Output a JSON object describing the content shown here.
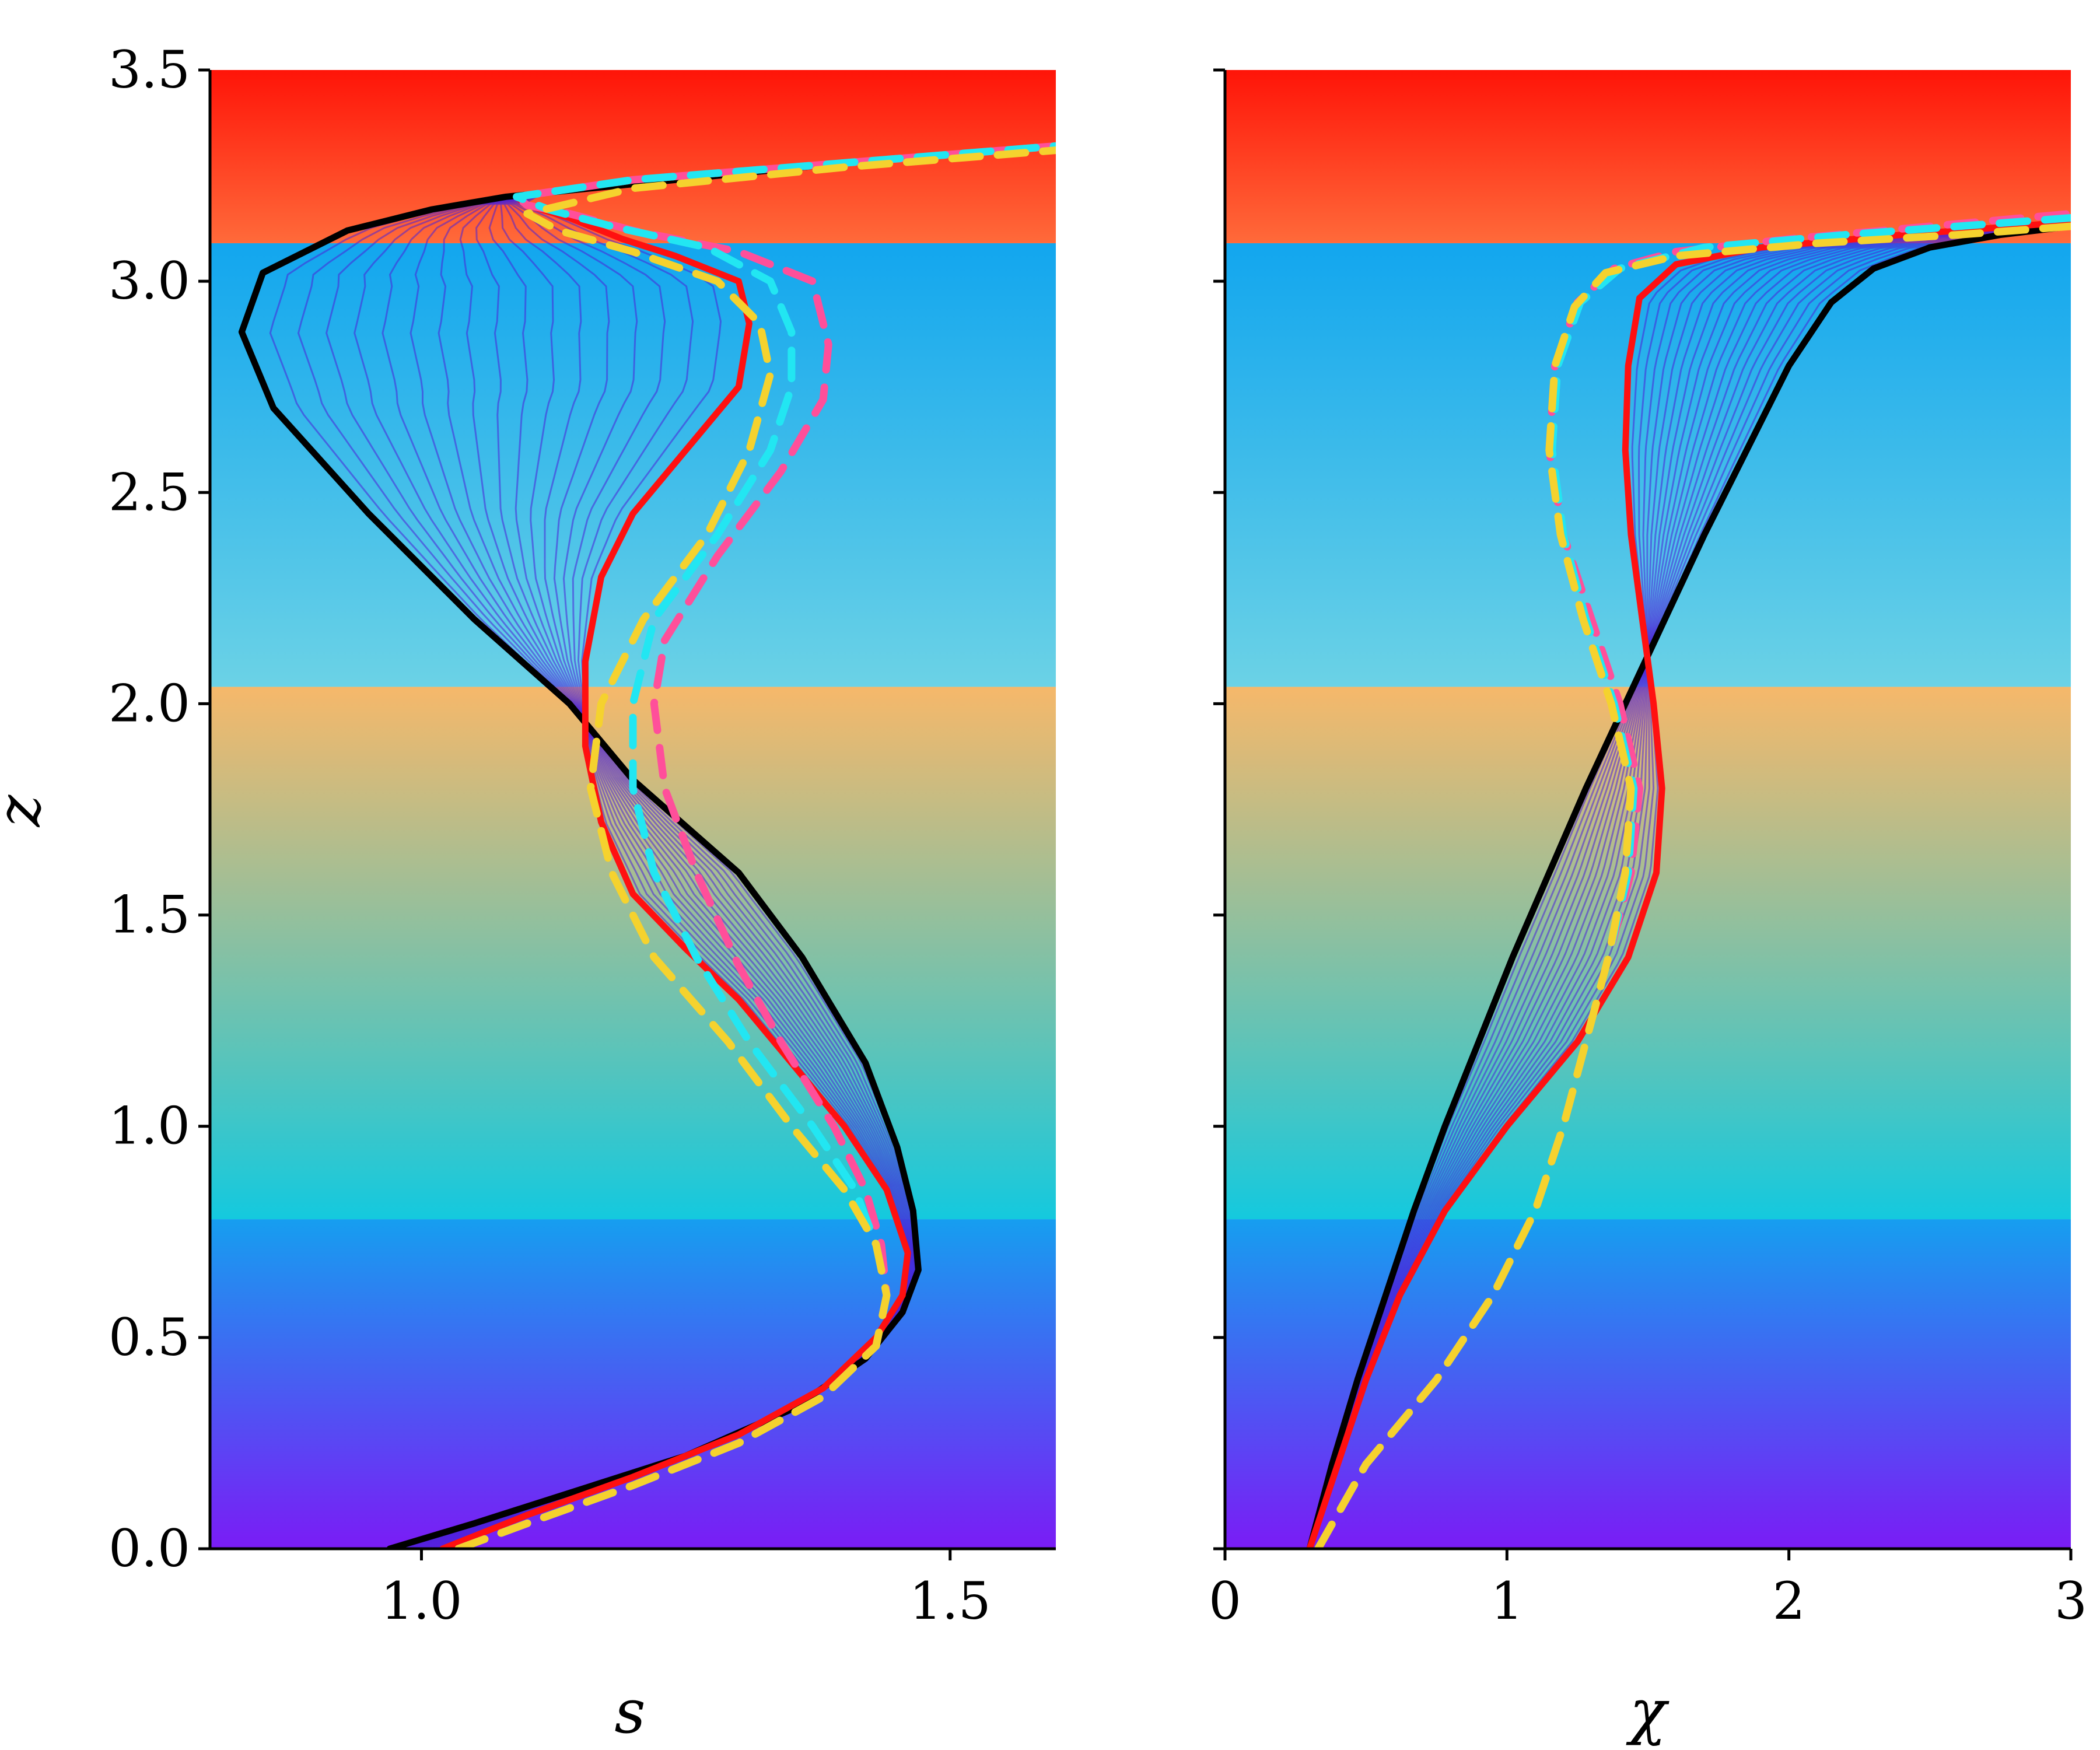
{
  "chart_data": [
    {
      "type": "line",
      "xlabel": "s",
      "ylabel": "z",
      "xlim": [
        0.8,
        1.6
      ],
      "ylim": [
        0.0,
        3.5
      ],
      "xticks": [
        "1.0",
        "1.5"
      ],
      "yticks": [
        "0.0",
        "0.5",
        "1.0",
        "1.5",
        "2.0",
        "2.5",
        "3.0",
        "3.5"
      ],
      "background_bands": [
        {
          "z_from": 0.0,
          "z_to": 0.78,
          "colors": [
            "#7a1cf5",
            "#169ef0"
          ]
        },
        {
          "z_from": 0.78,
          "z_to": 2.04,
          "colors": [
            "#14c9de",
            "#f6b86a"
          ]
        },
        {
          "z_from": 2.04,
          "z_to": 3.09,
          "colors": [
            "#6bd2e6",
            "#12a6ee"
          ]
        },
        {
          "z_from": 3.09,
          "z_to": 3.5,
          "colors": [
            "#ff6a3a",
            "#ff1408"
          ]
        }
      ],
      "series": [
        {
          "color": "#000000",
          "style": "solid",
          "x": [
            0.97,
            1.05,
            1.15,
            1.25,
            1.35,
            1.42,
            1.455,
            1.47,
            1.465,
            1.45,
            1.42,
            1.36,
            1.3,
            1.2,
            1.14,
            1.05,
            0.95,
            0.86,
            0.83,
            0.85,
            0.93,
            1.01,
            1.08,
            1.2,
            1.4,
            1.6
          ],
          "z": [
            0.0,
            0.06,
            0.14,
            0.22,
            0.33,
            0.45,
            0.56,
            0.66,
            0.8,
            0.95,
            1.15,
            1.4,
            1.6,
            1.82,
            2.0,
            2.2,
            2.45,
            2.7,
            2.88,
            3.02,
            3.12,
            3.17,
            3.2,
            3.23,
            3.28,
            3.32
          ]
        },
        {
          "color": "#ff1010",
          "style": "solid",
          "x": [
            1.02,
            1.1,
            1.2,
            1.3,
            1.38,
            1.43,
            1.455,
            1.46,
            1.44,
            1.4,
            1.35,
            1.3,
            1.25,
            1.2,
            1.17,
            1.155,
            1.155,
            1.17,
            1.2,
            1.25,
            1.3,
            1.31,
            1.3,
            1.24,
            1.19,
            1.14,
            1.1,
            1.09,
            1.2,
            1.4,
            1.6
          ],
          "z": [
            0.0,
            0.08,
            0.17,
            0.27,
            0.38,
            0.5,
            0.6,
            0.7,
            0.85,
            1.0,
            1.15,
            1.3,
            1.42,
            1.55,
            1.72,
            1.9,
            2.1,
            2.3,
            2.45,
            2.6,
            2.75,
            2.9,
            3.0,
            3.06,
            3.1,
            3.15,
            3.18,
            3.2,
            3.24,
            3.28,
            3.32
          ]
        },
        {
          "color": "#ff4f9a",
          "style": "dashed",
          "x": [
            1.035,
            1.1,
            1.2,
            1.3,
            1.38,
            1.43,
            1.44,
            1.435,
            1.42,
            1.39,
            1.34,
            1.3,
            1.26,
            1.23,
            1.22,
            1.23,
            1.28,
            1.34,
            1.38,
            1.385,
            1.37,
            1.3,
            1.2,
            1.14,
            1.1,
            1.09,
            1.2,
            1.4,
            1.6
          ],
          "z": [
            0.0,
            0.06,
            0.15,
            0.25,
            0.36,
            0.48,
            0.6,
            0.72,
            0.85,
            1.0,
            1.2,
            1.38,
            1.6,
            1.8,
            2.0,
            2.15,
            2.35,
            2.55,
            2.72,
            2.85,
            3.0,
            3.07,
            3.12,
            3.16,
            3.18,
            3.2,
            3.24,
            3.28,
            3.32
          ]
        },
        {
          "color": "#22e6f2",
          "style": "dashed",
          "x": [
            1.035,
            1.1,
            1.2,
            1.3,
            1.38,
            1.43,
            1.44,
            1.43,
            1.41,
            1.37,
            1.31,
            1.26,
            1.22,
            1.2,
            1.2,
            1.22,
            1.28,
            1.33,
            1.35,
            1.35,
            1.33,
            1.27,
            1.18,
            1.12,
            1.09,
            1.2,
            1.4,
            1.6
          ],
          "z": [
            0.0,
            0.06,
            0.15,
            0.25,
            0.36,
            0.48,
            0.6,
            0.72,
            0.85,
            1.0,
            1.2,
            1.4,
            1.6,
            1.8,
            2.0,
            2.2,
            2.4,
            2.6,
            2.75,
            2.88,
            3.0,
            3.08,
            3.13,
            3.17,
            3.2,
            3.24,
            3.28,
            3.32
          ]
        },
        {
          "color": "#f5d22e",
          "style": "dashed",
          "x": [
            1.035,
            1.1,
            1.2,
            1.3,
            1.38,
            1.43,
            1.44,
            1.43,
            1.4,
            1.35,
            1.29,
            1.22,
            1.18,
            1.16,
            1.17,
            1.21,
            1.27,
            1.31,
            1.33,
            1.32,
            1.28,
            1.2,
            1.13,
            1.1,
            1.2,
            1.4,
            1.6
          ],
          "z": [
            0.0,
            0.06,
            0.15,
            0.25,
            0.36,
            0.48,
            0.6,
            0.72,
            0.85,
            1.0,
            1.2,
            1.4,
            1.6,
            1.8,
            2.0,
            2.2,
            2.4,
            2.6,
            2.78,
            2.9,
            3.0,
            3.07,
            3.12,
            3.16,
            3.22,
            3.27,
            3.31
          ]
        }
      ]
    },
    {
      "type": "line",
      "xlabel": "χ",
      "ylabel": "",
      "xlim": [
        0,
        3
      ],
      "ylim": [
        0.0,
        3.5
      ],
      "xticks": [
        "0",
        "1",
        "2",
        "3"
      ],
      "yticks": [],
      "background_bands": [
        {
          "z_from": 0.0,
          "z_to": 0.78,
          "colors": [
            "#7a1cf5",
            "#169ef0"
          ]
        },
        {
          "z_from": 0.78,
          "z_to": 2.04,
          "colors": [
            "#14c9de",
            "#f6b86a"
          ]
        },
        {
          "z_from": 2.04,
          "z_to": 3.09,
          "colors": [
            "#6bd2e6",
            "#12a6ee"
          ]
        },
        {
          "z_from": 3.09,
          "z_to": 3.5,
          "colors": [
            "#ff6a3a",
            "#ff1408"
          ]
        }
      ],
      "series": [
        {
          "color": "#000000",
          "style": "solid",
          "x": [
            0.3,
            0.38,
            0.47,
            0.57,
            0.67,
            0.78,
            0.9,
            1.02,
            1.15,
            1.28,
            1.42,
            1.56,
            1.7,
            1.85,
            2.0,
            2.15,
            2.3,
            2.5,
            2.75,
            3.0
          ],
          "z": [
            0.0,
            0.2,
            0.4,
            0.6,
            0.8,
            1.0,
            1.2,
            1.4,
            1.6,
            1.8,
            2.0,
            2.2,
            2.4,
            2.6,
            2.8,
            2.95,
            3.03,
            3.08,
            3.11,
            3.13
          ]
        },
        {
          "color": "#ff1010",
          "style": "solid",
          "x": [
            0.3,
            0.4,
            0.5,
            0.62,
            0.78,
            1.0,
            1.25,
            1.43,
            1.53,
            1.55,
            1.52,
            1.48,
            1.44,
            1.42,
            1.43,
            1.47,
            1.6,
            1.9,
            2.4,
            3.0
          ],
          "z": [
            0.0,
            0.2,
            0.4,
            0.6,
            0.8,
            1.0,
            1.2,
            1.4,
            1.6,
            1.8,
            2.0,
            2.2,
            2.4,
            2.6,
            2.8,
            2.96,
            3.04,
            3.08,
            3.11,
            3.14
          ]
        },
        {
          "color": "#ff4f9a",
          "style": "dashed",
          "x": [
            0.33,
            0.5,
            0.75,
            0.95,
            1.1,
            1.2,
            1.28,
            1.36,
            1.44,
            1.47,
            1.4,
            1.3,
            1.2,
            1.15,
            1.17,
            1.25,
            1.38,
            1.6,
            2.0,
            2.5,
            3.0
          ],
          "z": [
            0.0,
            0.2,
            0.4,
            0.6,
            0.8,
            1.0,
            1.2,
            1.4,
            1.6,
            1.8,
            2.0,
            2.2,
            2.4,
            2.6,
            2.8,
            2.95,
            3.03,
            3.07,
            3.1,
            3.13,
            3.16
          ]
        },
        {
          "color": "#22e6f2",
          "style": "dashed",
          "x": [
            0.33,
            0.5,
            0.75,
            0.95,
            1.1,
            1.2,
            1.28,
            1.36,
            1.43,
            1.45,
            1.38,
            1.28,
            1.2,
            1.16,
            1.18,
            1.26,
            1.4,
            1.7,
            2.2,
            3.0
          ],
          "z": [
            0.0,
            0.2,
            0.4,
            0.6,
            0.8,
            1.0,
            1.2,
            1.4,
            1.6,
            1.8,
            2.0,
            2.2,
            2.4,
            2.6,
            2.8,
            2.95,
            3.03,
            3.08,
            3.11,
            3.15
          ]
        },
        {
          "color": "#f5d22e",
          "style": "dashed",
          "x": [
            0.33,
            0.5,
            0.75,
            0.95,
            1.1,
            1.2,
            1.28,
            1.36,
            1.42,
            1.44,
            1.37,
            1.27,
            1.19,
            1.15,
            1.17,
            1.24,
            1.35,
            1.6,
            2.1,
            2.6,
            3.0
          ],
          "z": [
            0.0,
            0.2,
            0.4,
            0.6,
            0.8,
            1.0,
            1.2,
            1.4,
            1.6,
            1.8,
            2.0,
            2.2,
            2.4,
            2.6,
            2.8,
            2.94,
            3.02,
            3.06,
            3.09,
            3.11,
            3.13
          ]
        }
      ]
    }
  ]
}
